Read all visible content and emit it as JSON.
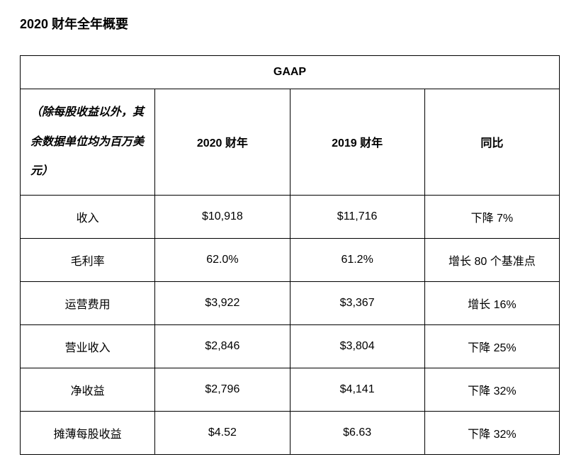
{
  "title": "2020 财年全年概要",
  "table": {
    "gaap_header": "GAAP",
    "note_text": "（除每股收益以外，其余数据单位均为百万美元）",
    "columns": {
      "fy2020": "2020 财年",
      "fy2019": "2019 财年",
      "yoy": "同比"
    },
    "rows": [
      {
        "metric": "收入",
        "fy2020": "$10,918",
        "fy2019": "$11,716",
        "yoy": "下降 7%"
      },
      {
        "metric": "毛利率",
        "fy2020": "62.0%",
        "fy2019": "61.2%",
        "yoy": "增长 80 个基准点"
      },
      {
        "metric": "运营费用",
        "fy2020": "$3,922",
        "fy2019": "$3,367",
        "yoy": "增长 16%"
      },
      {
        "metric": "营业收入",
        "fy2020": "$2,846",
        "fy2019": "$3,804",
        "yoy": "下降 25%"
      },
      {
        "metric": "净收益",
        "fy2020": "$2,796",
        "fy2019": "$4,141",
        "yoy": "下降 32%"
      },
      {
        "metric": "摊薄每股收益",
        "fy2020": "$4.52",
        "fy2019": "$6.63",
        "yoy": "下降 32%"
      }
    ],
    "styling": {
      "type": "table",
      "border_color": "#000000",
      "border_width": 1,
      "background_color": "#ffffff",
      "text_color": "#000000",
      "header_font_weight": "bold",
      "body_font_size": 16,
      "title_font_size": 18,
      "note_font_style": "italic",
      "col_widths": {
        "metric": 220,
        "fy2020": 165,
        "fy2019": 165,
        "yoy": 212
      },
      "cell_align": "center",
      "note_align": "left"
    }
  }
}
